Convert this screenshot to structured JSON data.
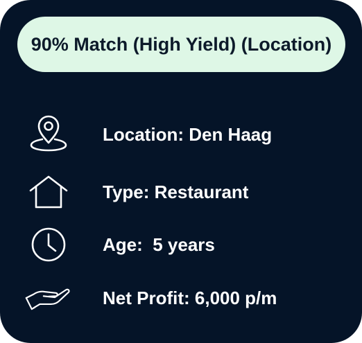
{
  "badge": {
    "text": "90% Match (High Yield) (Location)"
  },
  "details": [
    {
      "icon": "location-pin-icon",
      "text": "Location: Den Haag"
    },
    {
      "icon": "house-icon",
      "text": "Type: Restaurant"
    },
    {
      "icon": "clock-icon",
      "text": "Age:  5 years"
    },
    {
      "icon": "hand-icon",
      "text": "Net Profit: 6,000 p/m"
    }
  ],
  "colors": {
    "card_background": "#051428",
    "badge_background": "#def7e6",
    "badge_text": "#0d1a2a",
    "detail_text": "#ffffff"
  }
}
